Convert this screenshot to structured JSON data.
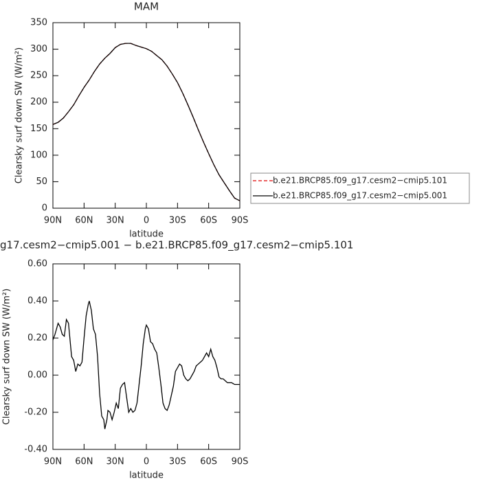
{
  "chart_data": [
    {
      "type": "line",
      "title": "MAM",
      "xlabel": "latitude",
      "ylabel": "Clearsky surf down SW (W/m²)",
      "x": [
        90,
        85,
        80,
        75,
        70,
        65,
        60,
        55,
        50,
        45,
        40,
        35,
        30,
        25,
        20,
        15,
        10,
        5,
        0,
        -5,
        -10,
        -15,
        -20,
        -25,
        -30,
        -35,
        -40,
        -45,
        -50,
        -55,
        -60,
        -65,
        -70,
        -75,
        -80,
        -85,
        -90
      ],
      "series": [
        {
          "name": "b.e21.BRCP85.f09_g17.cesm2−cmip5.101",
          "color": "#e00000",
          "linestyle": "dashed",
          "values": [
            158,
            162,
            170,
            182,
            195,
            212,
            228,
            242,
            258,
            272,
            283,
            292,
            303,
            309,
            311,
            311,
            307,
            304,
            301,
            296,
            288,
            280,
            268,
            253,
            237,
            217,
            195,
            172,
            148,
            125,
            103,
            82,
            63,
            48,
            33,
            19,
            14
          ]
        },
        {
          "name": "b.e21.BRCP85.f09_g17.cesm2−cmip5.001",
          "color": "#000000",
          "linestyle": "solid",
          "values": [
            158,
            162,
            170,
            182,
            195,
            212,
            228,
            242,
            258,
            272,
            283,
            292,
            303,
            309,
            311,
            311,
            307,
            304,
            301,
            296,
            288,
            280,
            268,
            253,
            237,
            217,
            195,
            172,
            148,
            125,
            103,
            82,
            63,
            48,
            33,
            19,
            14
          ]
        }
      ],
      "xlim": [
        90,
        -90
      ],
      "xticks": [
        {
          "value": 90,
          "label": "90N"
        },
        {
          "value": 60,
          "label": "60N"
        },
        {
          "value": 30,
          "label": "30N"
        },
        0,
        {
          "value": -30,
          "label": "30S"
        },
        {
          "value": -60,
          "label": "60S"
        },
        {
          "value": -90,
          "label": "90S"
        }
      ],
      "ylim": [
        0,
        350
      ],
      "yticks": [
        0,
        50,
        100,
        150,
        200,
        250,
        300,
        350
      ],
      "legend": "right"
    },
    {
      "type": "line",
      "title": "g17.cesm2−cmip5.001 − b.e21.BRCP85.f09_g17.cesm2−cmip5.101",
      "xlabel": "latitude",
      "ylabel": "Clearsky surf down SW (W/m²)",
      "x": [
        90,
        88,
        85,
        83,
        81,
        79,
        77,
        75,
        72,
        70,
        68,
        66,
        64,
        62,
        60,
        58,
        56,
        55,
        53,
        51,
        49,
        47,
        45,
        43,
        41,
        40,
        38,
        37,
        35,
        33,
        31,
        29,
        27,
        25,
        23,
        21,
        19,
        17,
        15,
        13,
        11,
        9,
        7,
        5,
        3,
        1,
        0,
        -2,
        -4,
        -6,
        -8,
        -10,
        -12,
        -14,
        -16,
        -18,
        -20,
        -22,
        -24,
        -26,
        -28,
        -30,
        -32,
        -34,
        -36,
        -38,
        -40,
        -42,
        -44,
        -46,
        -48,
        -50,
        -52,
        -54,
        -56,
        -58,
        -60,
        -62,
        -64,
        -66,
        -68,
        -70,
        -72,
        -74,
        -76,
        -78,
        -80,
        -82,
        -85,
        -90
      ],
      "series": [
        {
          "color": "#000000",
          "linestyle": "solid",
          "values": [
            0.19,
            0.22,
            0.28,
            0.26,
            0.22,
            0.21,
            0.3,
            0.28,
            0.1,
            0.08,
            0.02,
            0.06,
            0.05,
            0.07,
            0.2,
            0.32,
            0.38,
            0.4,
            0.35,
            0.25,
            0.22,
            0.1,
            -0.1,
            -0.22,
            -0.24,
            -0.29,
            -0.24,
            -0.19,
            -0.2,
            -0.24,
            -0.2,
            -0.15,
            -0.18,
            -0.07,
            -0.05,
            -0.04,
            -0.12,
            -0.2,
            -0.18,
            -0.2,
            -0.19,
            -0.15,
            -0.05,
            0.05,
            0.17,
            0.25,
            0.27,
            0.25,
            0.18,
            0.17,
            0.14,
            0.12,
            0.04,
            -0.05,
            -0.15,
            -0.18,
            -0.19,
            -0.16,
            -0.11,
            -0.06,
            0.02,
            0.04,
            0.06,
            0.05,
            0.0,
            -0.02,
            -0.03,
            -0.02,
            0.0,
            0.02,
            0.05,
            0.06,
            0.07,
            0.08,
            0.1,
            0.12,
            0.1,
            0.14,
            0.1,
            0.08,
            0.04,
            -0.01,
            -0.02,
            -0.02,
            -0.03,
            -0.04,
            -0.04,
            -0.04,
            -0.05,
            -0.05
          ]
        }
      ],
      "xlim": [
        90,
        -90
      ],
      "xticks": [
        {
          "value": 90,
          "label": "90N"
        },
        {
          "value": 60,
          "label": "60N"
        },
        {
          "value": 30,
          "label": "30N"
        },
        0,
        {
          "value": -30,
          "label": "30S"
        },
        {
          "value": -60,
          "label": "60S"
        },
        {
          "value": -90,
          "label": "90S"
        }
      ],
      "ylim": [
        -0.4,
        0.6
      ],
      "yticks": [
        {
          "value": -0.4,
          "label": "-0.40"
        },
        {
          "value": -0.2,
          "label": "-0.20"
        },
        {
          "value": 0,
          "label": "0.00"
        },
        {
          "value": 0.2,
          "label": "0.20"
        },
        {
          "value": 0.4,
          "label": "0.40"
        },
        {
          "value": 0.6,
          "label": "0.60"
        }
      ]
    }
  ]
}
